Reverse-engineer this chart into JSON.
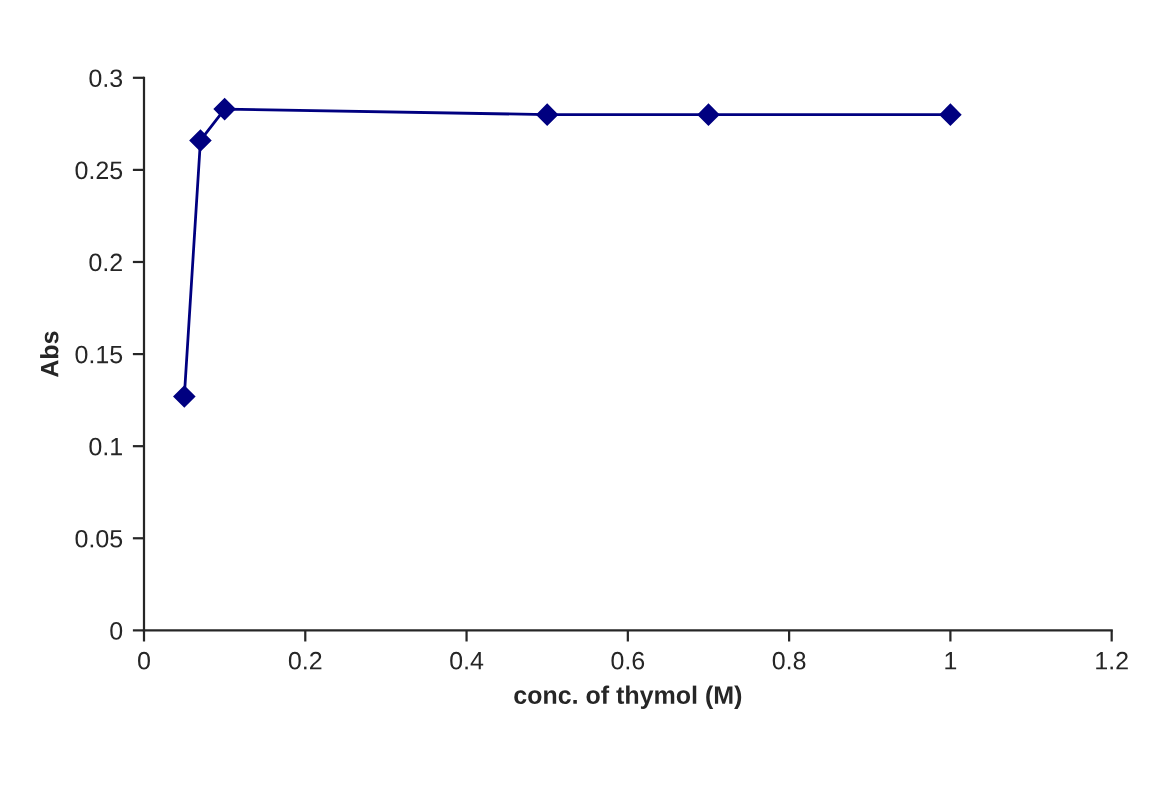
{
  "chart_data": {
    "type": "line",
    "xlabel": "conc. of thymol (M)",
    "ylabel": "Abs",
    "x": [
      0.05,
      0.07,
      0.1,
      0.5,
      0.7,
      1
    ],
    "series": [
      {
        "color": "#000080",
        "values": [
          0.127,
          0.266,
          0.283,
          0.28,
          0.28,
          0.28
        ]
      }
    ],
    "xlim": [
      0,
      1.2
    ],
    "xticks": [
      0,
      0.2,
      0.4,
      0.6,
      0.8,
      1,
      1.2
    ],
    "ylim": [
      0,
      0.3
    ],
    "yticks": [
      0,
      0.05,
      0.1,
      0.15,
      0.2,
      0.25,
      0.3
    ],
    "marker": "diamond",
    "line_style": "solid",
    "grid": false,
    "legend": false
  }
}
